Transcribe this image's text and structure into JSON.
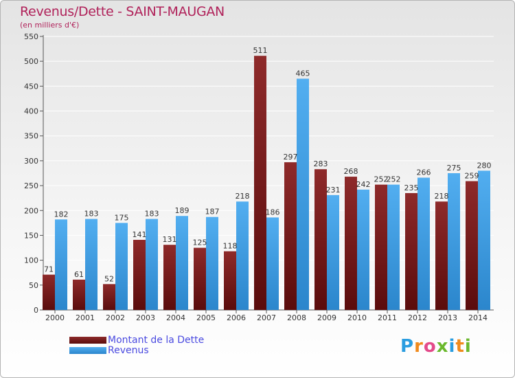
{
  "chart_data": {
    "type": "bar",
    "title": "Revenus/Dette - SAINT-MAUGAN",
    "subtitle": "(en milliers d'€)",
    "categories": [
      "2000",
      "2001",
      "2002",
      "2003",
      "2004",
      "2005",
      "2006",
      "2007",
      "2008",
      "2009",
      "2010",
      "2011",
      "2012",
      "2013",
      "2014"
    ],
    "series": [
      {
        "name": "Montant de la Dette",
        "color": "#7a1a1a",
        "values": [
          71,
          61,
          52,
          141,
          131,
          125,
          118,
          511,
          297,
          283,
          268,
          252,
          235,
          218,
          259
        ]
      },
      {
        "name": "Revenus",
        "color": "#3c9be0",
        "values": [
          182,
          183,
          175,
          183,
          189,
          187,
          218,
          186,
          465,
          231,
          242,
          252,
          266,
          275,
          280
        ]
      }
    ],
    "ylim": [
      0,
      550
    ],
    "yticks": [
      0,
      50,
      100,
      150,
      200,
      250,
      300,
      350,
      400,
      450,
      500,
      550
    ],
    "grid": true,
    "legend_position": "bottom-left"
  },
  "logo": {
    "letters": [
      "P",
      "r",
      "o",
      "x",
      "i",
      "t",
      "i"
    ],
    "colors": [
      "#2a9de0",
      "#f08a1c",
      "#e34a8a",
      "#6ab82d",
      "#2a9de0",
      "#f08a1c",
      "#6ab82d"
    ]
  }
}
